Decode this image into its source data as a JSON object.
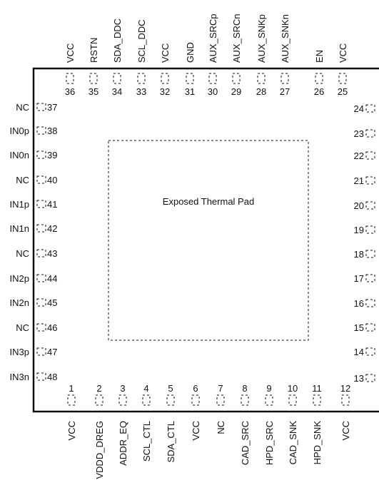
{
  "pad_label": "Exposed Thermal Pad",
  "top_pins": [
    {
      "number": "36",
      "label": "VCC"
    },
    {
      "number": "35",
      "label": "RSTN"
    },
    {
      "number": "34",
      "label": "SDA_DDC"
    },
    {
      "number": "33",
      "label": "SCL_DDC"
    },
    {
      "number": "32",
      "label": "VCC"
    },
    {
      "number": "31",
      "label": "GND"
    },
    {
      "number": "30",
      "label": "AUX_SRCp"
    },
    {
      "number": "29",
      "label": "AUX_SRCn"
    },
    {
      "number": "28",
      "label": "AUX_SNKp"
    },
    {
      "number": "27",
      "label": "AUX_SNKn"
    },
    {
      "number": "26",
      "label": "EN"
    },
    {
      "number": "25",
      "label": "VCC"
    }
  ],
  "bottom_pins": [
    {
      "number": "1",
      "label": "VCC"
    },
    {
      "number": "2",
      "label": "VDDD_DREG"
    },
    {
      "number": "3",
      "label": "ADDR_EQ"
    },
    {
      "number": "4",
      "label": "SCL_CTL"
    },
    {
      "number": "5",
      "label": "SDA_CTL"
    },
    {
      "number": "6",
      "label": "VCC"
    },
    {
      "number": "7",
      "label": "NC"
    },
    {
      "number": "8",
      "label": "CAD_SRC"
    },
    {
      "number": "9",
      "label": "HPD_SRC"
    },
    {
      "number": "10",
      "label": "CAD_SNK"
    },
    {
      "number": "11",
      "label": "HPD_SNK"
    },
    {
      "number": "12",
      "label": "VCC"
    }
  ],
  "left_pins": [
    {
      "number": "37",
      "label": "NC"
    },
    {
      "number": "38",
      "label": "IN0p"
    },
    {
      "number": "39",
      "label": "IN0n"
    },
    {
      "number": "40",
      "label": "NC"
    },
    {
      "number": "41",
      "label": "IN1p"
    },
    {
      "number": "42",
      "label": "IN1n"
    },
    {
      "number": "43",
      "label": "NC"
    },
    {
      "number": "44",
      "label": "IN2p"
    },
    {
      "number": "45",
      "label": "IN2n"
    },
    {
      "number": "46",
      "label": "NC"
    },
    {
      "number": "47",
      "label": "IN3p"
    },
    {
      "number": "48",
      "label": "IN3n"
    }
  ],
  "right_pins": [
    {
      "number": "24"
    },
    {
      "number": "23"
    },
    {
      "number": "22"
    },
    {
      "number": "21"
    },
    {
      "number": "20"
    },
    {
      "number": "19"
    },
    {
      "number": "18"
    },
    {
      "number": "17"
    },
    {
      "number": "16"
    },
    {
      "number": "15"
    },
    {
      "number": "14"
    },
    {
      "number": "13"
    }
  ]
}
